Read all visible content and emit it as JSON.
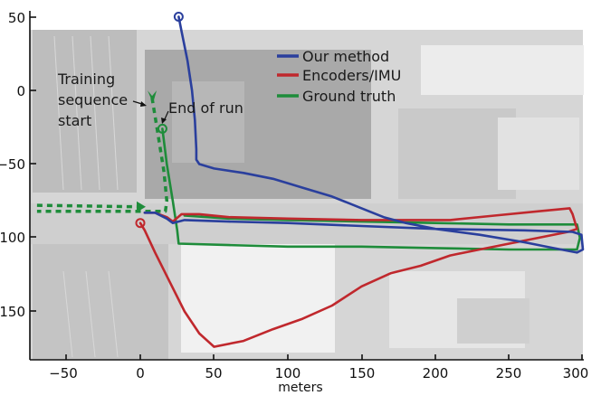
{
  "chart_data": {
    "type": "line",
    "title": "",
    "xlabel": "meters",
    "ylabel": "",
    "xlim": [
      -72,
      305
    ],
    "ylim": [
      -182,
      55
    ],
    "grid": false,
    "background": "aerial satellite map (washed out)",
    "x_ticks": [
      -50,
      0,
      50,
      100,
      150,
      200,
      250,
      300
    ],
    "x_tick_labels": [
      "−50",
      "0",
      "50",
      "100",
      "150",
      "200",
      "250",
      "300"
    ],
    "y_ticks": [
      50,
      0,
      -50,
      -100,
      -150
    ],
    "y_tick_labels": [
      "50",
      "0",
      "−50",
      "−100",
      "−150"
    ],
    "legend": {
      "position": "upper center-right",
      "entries": [
        "Our method",
        "Encoders/IMU",
        "Ground truth"
      ]
    },
    "series": [
      {
        "name": "Our method",
        "color": "#2a3f9d",
        "start_marker": "circle",
        "points": [
          [
            26,
            50
          ],
          [
            28,
            40
          ],
          [
            32,
            20
          ],
          [
            35,
            0
          ],
          [
            37,
            -20
          ],
          [
            38,
            -40
          ],
          [
            38,
            -47
          ],
          [
            40,
            -50
          ],
          [
            50,
            -53
          ],
          [
            70,
            -56
          ],
          [
            90,
            -60
          ],
          [
            110,
            -66
          ],
          [
            130,
            -72
          ],
          [
            150,
            -80
          ],
          [
            165,
            -86
          ],
          [
            180,
            -90
          ],
          [
            200,
            -94
          ],
          [
            230,
            -98
          ],
          [
            260,
            -103
          ],
          [
            280,
            -107
          ],
          [
            296,
            -110
          ],
          [
            300,
            -108
          ],
          [
            299,
            -98
          ],
          [
            293,
            -96
          ],
          [
            260,
            -95
          ],
          [
            200,
            -94
          ],
          [
            150,
            -92
          ],
          [
            100,
            -90
          ],
          [
            60,
            -89
          ],
          [
            30,
            -88
          ],
          [
            22,
            -90
          ],
          [
            18,
            -87
          ],
          [
            10,
            -83
          ],
          [
            3,
            -83
          ]
        ]
      },
      {
        "name": "Encoders/IMU",
        "color": "#c0282d",
        "start_marker": "circle",
        "points": [
          [
            0,
            -90
          ],
          [
            3,
            -95
          ],
          [
            10,
            -110
          ],
          [
            20,
            -130
          ],
          [
            30,
            -150
          ],
          [
            40,
            -165
          ],
          [
            50,
            -174
          ],
          [
            70,
            -170
          ],
          [
            90,
            -162
          ],
          [
            110,
            -155
          ],
          [
            130,
            -146
          ],
          [
            150,
            -133
          ],
          [
            170,
            -124
          ],
          [
            190,
            -119
          ],
          [
            210,
            -112
          ],
          [
            230,
            -108
          ],
          [
            250,
            -104
          ],
          [
            270,
            -100
          ],
          [
            290,
            -96
          ],
          [
            296,
            -94
          ],
          [
            293,
            -84
          ],
          [
            291,
            -80
          ],
          [
            270,
            -82
          ],
          [
            240,
            -85
          ],
          [
            210,
            -88
          ],
          [
            180,
            -88
          ],
          [
            150,
            -88
          ],
          [
            100,
            -87
          ],
          [
            60,
            -86
          ],
          [
            40,
            -84
          ],
          [
            28,
            -84
          ],
          [
            22,
            -89
          ],
          [
            18,
            -86
          ],
          [
            10,
            -83
          ],
          [
            3,
            -83
          ]
        ]
      },
      {
        "name": "Ground truth",
        "color": "#1e8c3a",
        "start_marker": "circle",
        "points": [
          [
            15,
            -26
          ],
          [
            18,
            -50
          ],
          [
            22,
            -75
          ],
          [
            25,
            -95
          ],
          [
            26,
            -104
          ],
          [
            60,
            -105
          ],
          [
            100,
            -106
          ],
          [
            150,
            -106
          ],
          [
            200,
            -107
          ],
          [
            250,
            -108
          ],
          [
            296,
            -108
          ],
          [
            298,
            -100
          ],
          [
            296,
            -91
          ],
          [
            250,
            -91
          ],
          [
            200,
            -90
          ],
          [
            150,
            -89
          ],
          [
            100,
            -88
          ],
          [
            60,
            -87
          ],
          [
            30,
            -85
          ]
        ]
      },
      {
        "name": "Training sequence (dashed)",
        "color": "#1e8c3a",
        "style": "dashed",
        "points": [
          [
            8,
            -5
          ],
          [
            12,
            -30
          ],
          [
            16,
            -55
          ],
          [
            18,
            -75
          ],
          [
            17,
            -82
          ],
          [
            -70,
            -82
          ]
        ],
        "points_second": [
          [
            -70,
            -78
          ],
          [
            0,
            -79
          ]
        ]
      }
    ],
    "annotations": [
      {
        "text": "Training sequence start",
        "xy": [
          8,
          -8
        ]
      },
      {
        "text": "End of run",
        "xy": [
          14,
          -25
        ]
      }
    ]
  },
  "labels": {
    "xlabel": "meters",
    "legend": [
      "Our method",
      "Encoders/IMU",
      "Ground truth"
    ],
    "annot_training": [
      "Training",
      "sequence",
      "start"
    ],
    "annot_end": "End of run",
    "xticks": [
      "−50",
      "0",
      "50",
      "100",
      "150",
      "200",
      "250",
      "300"
    ],
    "yticks": [
      "50",
      "0",
      "−50",
      "−100",
      "−150"
    ]
  }
}
